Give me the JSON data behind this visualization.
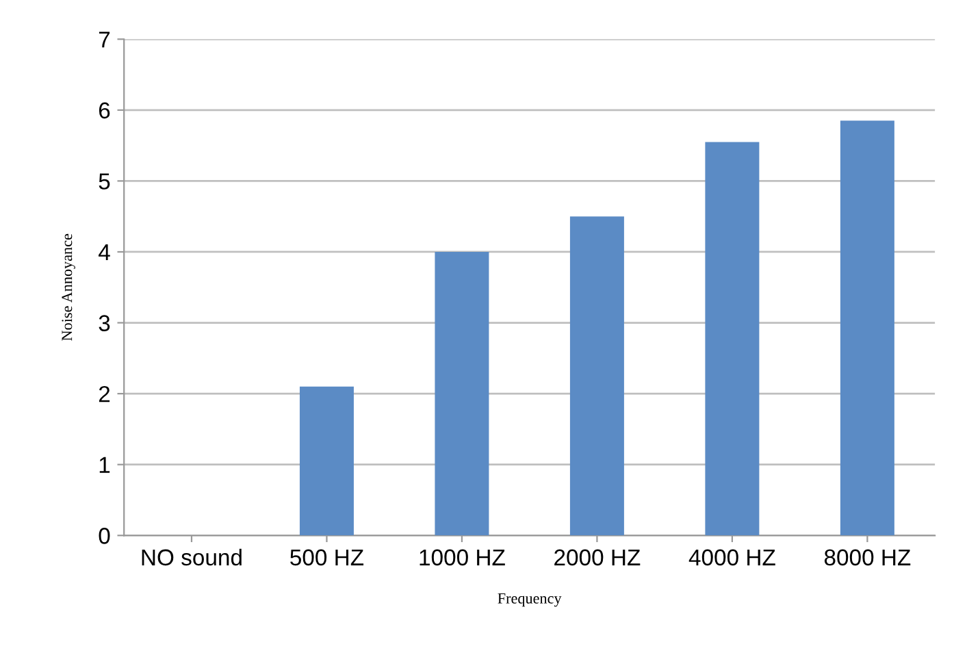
{
  "chart_data": {
    "type": "bar",
    "xlabel": "Frequency",
    "ylabel": "Noise Annoyance",
    "categories": [
      "NO sound",
      "500 HZ",
      "1000 HZ",
      "2000 HZ",
      "4000 HZ",
      "8000 HZ"
    ],
    "values": [
      0,
      2.1,
      4.0,
      4.5,
      5.55,
      5.85
    ],
    "color": "#5b8bc5",
    "ylim": [
      0,
      7
    ],
    "yticks": [
      0,
      1,
      2,
      3,
      4,
      5,
      6,
      7
    ],
    "grid": "y",
    "legend": false
  }
}
